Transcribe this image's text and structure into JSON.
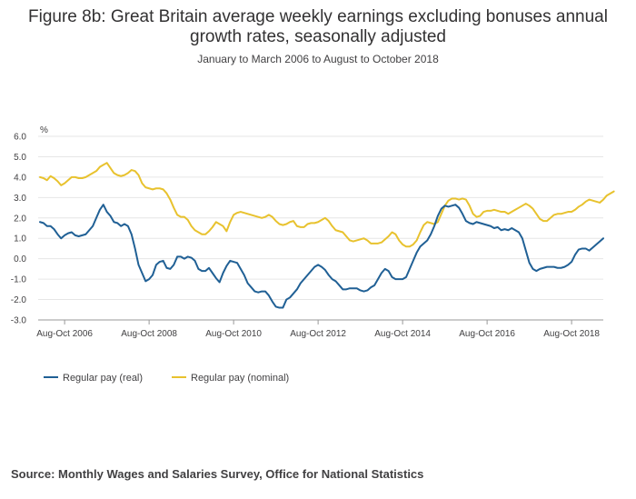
{
  "title": "Figure 8b: Great Britain average weekly earnings excluding bonuses annual growth rates, seasonally adjusted",
  "subtitle": "January to March 2006 to August to October 2018",
  "source": "Source: Monthly Wages and Salaries Survey, Office for National Statistics",
  "chart_data": {
    "type": "line",
    "title": "Figure 8b: Great Britain average weekly earnings excluding bonuses annual growth rates, seasonally adjusted",
    "subtitle": "January to March 2006 to August to October 2018",
    "xlabel": "",
    "ylabel": "%",
    "ylim": [
      -3.0,
      6.0
    ],
    "yticks": [
      "6.0",
      "5.0",
      "4.0",
      "3.0",
      "2.0",
      "1.0",
      "0.0",
      "-1.0",
      "-2.0",
      "-3.0"
    ],
    "xtick_labels": [
      "Aug-Oct 2006",
      "Aug-Oct 2008",
      "Aug-Oct 2010",
      "Aug-Oct 2012",
      "Aug-Oct 2014",
      "Aug-Oct 2016",
      "Aug-Oct 2018"
    ],
    "xtick_index": [
      7,
      31,
      55,
      79,
      103,
      127,
      151
    ],
    "legend_position": "bottom-left",
    "grid": true,
    "period_start": "Jan-Mar 2006",
    "period_end": "Aug-Oct 2018",
    "series": [
      {
        "name": "Regular pay (real)",
        "color": "#206095",
        "values": [
          1.8,
          1.75,
          1.6,
          1.6,
          1.45,
          1.2,
          1.0,
          1.15,
          1.25,
          1.3,
          1.15,
          1.1,
          1.15,
          1.2,
          1.4,
          1.6,
          2.0,
          2.4,
          2.65,
          2.3,
          2.1,
          1.8,
          1.75,
          1.6,
          1.7,
          1.6,
          1.2,
          0.5,
          -0.3,
          -0.7,
          -1.1,
          -1.0,
          -0.8,
          -0.3,
          -0.15,
          -0.1,
          -0.45,
          -0.5,
          -0.3,
          0.1,
          0.1,
          0.0,
          0.1,
          0.05,
          -0.1,
          -0.5,
          -0.6,
          -0.6,
          -0.45,
          -0.7,
          -0.95,
          -1.15,
          -0.7,
          -0.35,
          -0.1,
          -0.15,
          -0.2,
          -0.5,
          -0.8,
          -1.2,
          -1.4,
          -1.6,
          -1.65,
          -1.6,
          -1.6,
          -1.8,
          -2.1,
          -2.35,
          -2.4,
          -2.4,
          -2.0,
          -1.9,
          -1.7,
          -1.5,
          -1.2,
          -1.0,
          -0.8,
          -0.6,
          -0.4,
          -0.3,
          -0.4,
          -0.55,
          -0.8,
          -1.0,
          -1.1,
          -1.3,
          -1.5,
          -1.5,
          -1.45,
          -1.45,
          -1.45,
          -1.55,
          -1.6,
          -1.55,
          -1.4,
          -1.3,
          -1.0,
          -0.7,
          -0.5,
          -0.6,
          -0.9,
          -1.0,
          -1.0,
          -1.0,
          -0.9,
          -0.5,
          -0.1,
          0.3,
          0.6,
          0.75,
          0.9,
          1.2,
          1.6,
          2.1,
          2.45,
          2.6,
          2.55,
          2.6,
          2.65,
          2.5,
          2.2,
          1.85,
          1.75,
          1.7,
          1.8,
          1.75,
          1.7,
          1.65,
          1.6,
          1.5,
          1.55,
          1.4,
          1.45,
          1.4,
          1.5,
          1.4,
          1.3,
          1.0,
          0.4,
          -0.2,
          -0.5,
          -0.6,
          -0.5,
          -0.45,
          -0.4,
          -0.4,
          -0.4,
          -0.45,
          -0.45,
          -0.4,
          -0.3,
          -0.15,
          0.2,
          0.45,
          0.5,
          0.5,
          0.4,
          0.55,
          0.7,
          0.85,
          1.0
        ],
        "_x": null
      },
      {
        "name": "Regular pay (nominal)",
        "color": "#e8c22e",
        "values": [
          4.0,
          3.95,
          3.85,
          4.05,
          3.95,
          3.8,
          3.6,
          3.7,
          3.85,
          4.0,
          4.0,
          3.95,
          3.95,
          4.0,
          4.1,
          4.2,
          4.3,
          4.5,
          4.6,
          4.7,
          4.45,
          4.2,
          4.1,
          4.05,
          4.1,
          4.2,
          4.35,
          4.3,
          4.1,
          3.7,
          3.5,
          3.45,
          3.4,
          3.45,
          3.45,
          3.4,
          3.2,
          2.9,
          2.5,
          2.15,
          2.05,
          2.05,
          1.9,
          1.6,
          1.4,
          1.3,
          1.2,
          1.2,
          1.35,
          1.55,
          1.8,
          1.7,
          1.6,
          1.35,
          1.8,
          2.15,
          2.25,
          2.3,
          2.25,
          2.2,
          2.15,
          2.1,
          2.05,
          2.0,
          2.05,
          2.15,
          2.05,
          1.85,
          1.7,
          1.65,
          1.7,
          1.8,
          1.85,
          1.6,
          1.55,
          1.55,
          1.7,
          1.75,
          1.75,
          1.8,
          1.9,
          2.0,
          1.85,
          1.6,
          1.4,
          1.35,
          1.3,
          1.1,
          0.9,
          0.85,
          0.9,
          0.95,
          1.0,
          0.9,
          0.75,
          0.75,
          0.75,
          0.8,
          0.95,
          1.1,
          1.3,
          1.2,
          0.9,
          0.7,
          0.6,
          0.6,
          0.7,
          0.9,
          1.3,
          1.65,
          1.8,
          1.75,
          1.7,
          1.8,
          2.2,
          2.6,
          2.85,
          2.95,
          2.95,
          2.9,
          2.95,
          2.9,
          2.6,
          2.2,
          2.05,
          2.1,
          2.3,
          2.35,
          2.35,
          2.4,
          2.35,
          2.3,
          2.3,
          2.2,
          2.3,
          2.4,
          2.5,
          2.6,
          2.7,
          2.6,
          2.45,
          2.2,
          1.95,
          1.85,
          1.85,
          2.0,
          2.15,
          2.2,
          2.2,
          2.25,
          2.3,
          2.3,
          2.4,
          2.55,
          2.65,
          2.8,
          2.9,
          2.85,
          2.8,
          2.75,
          2.9,
          3.1,
          3.2,
          3.3
        ]
      }
    ]
  }
}
